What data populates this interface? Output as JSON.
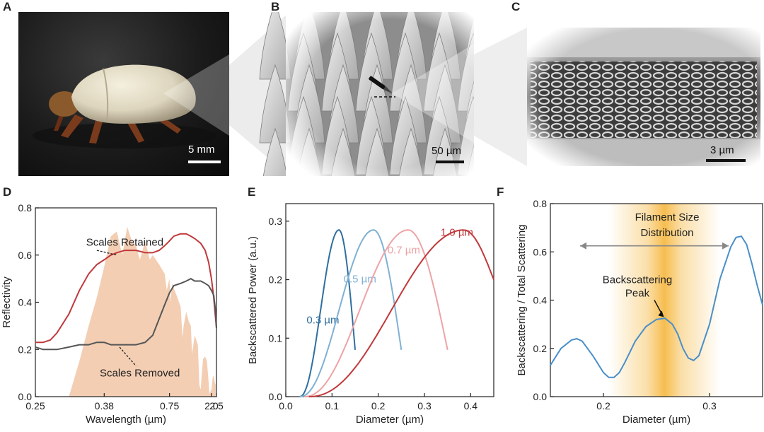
{
  "panels": {
    "A": {
      "letter": "A",
      "scale_bar": "5 mm"
    },
    "B": {
      "letter": "B",
      "scale_bar": "50 µm"
    },
    "C": {
      "letter": "C",
      "scale_bar": "3 µm"
    }
  },
  "chart_data": [
    {
      "panel": "D",
      "type": "line",
      "xlabel": "Wavelength (µm)",
      "ylabel": "Reflectivity",
      "xlim": [
        0.25,
        2.5
      ],
      "ylim": [
        0.0,
        0.8
      ],
      "x_scale": "reciprocal",
      "x_ticks": [
        0.25,
        0.38,
        0.75,
        2.0,
        2.5
      ],
      "x_tick_labels": [
        "0.25",
        "0.38",
        "0.75",
        "2.0",
        "2.5"
      ],
      "y_ticks": [
        0.0,
        0.2,
        0.4,
        0.6,
        0.8
      ],
      "y_tick_labels": [
        "0.0",
        "0.2",
        "0.4",
        "0.6",
        "0.8"
      ],
      "colors": {
        "retained": "#c0393b",
        "removed": "#555555",
        "solar": "#f1c6a6"
      },
      "series": [
        {
          "name": "Scales Retained",
          "x": [
            0.25,
            0.26,
            0.27,
            0.28,
            0.3,
            0.32,
            0.34,
            0.36,
            0.38,
            0.4,
            0.42,
            0.45,
            0.5,
            0.55,
            0.6,
            0.65,
            0.7,
            0.75,
            0.8,
            0.9,
            1.0,
            1.1,
            1.2,
            1.4,
            1.6,
            1.8,
            2.0,
            2.2,
            2.4,
            2.5
          ],
          "values": [
            0.23,
            0.23,
            0.24,
            0.27,
            0.35,
            0.45,
            0.52,
            0.56,
            0.58,
            0.6,
            0.61,
            0.62,
            0.62,
            0.61,
            0.61,
            0.62,
            0.64,
            0.66,
            0.68,
            0.69,
            0.69,
            0.68,
            0.67,
            0.65,
            0.62,
            0.57,
            0.5,
            0.42,
            0.33,
            0.29
          ]
        },
        {
          "name": "Scales Removed",
          "x": [
            0.25,
            0.26,
            0.27,
            0.28,
            0.3,
            0.32,
            0.34,
            0.36,
            0.38,
            0.4,
            0.45,
            0.5,
            0.55,
            0.6,
            0.65,
            0.7,
            0.75,
            0.8,
            0.9,
            1.0,
            1.1,
            1.2,
            1.4,
            1.6,
            1.8,
            2.0,
            2.2,
            2.4,
            2.5
          ],
          "values": [
            0.21,
            0.2,
            0.2,
            0.2,
            0.21,
            0.22,
            0.22,
            0.23,
            0.23,
            0.22,
            0.22,
            0.22,
            0.23,
            0.26,
            0.33,
            0.39,
            0.44,
            0.47,
            0.48,
            0.49,
            0.5,
            0.49,
            0.49,
            0.48,
            0.47,
            0.45,
            0.43,
            0.36,
            0.29
          ]
        }
      ],
      "solar_spectrum": {
        "x": [
          0.3,
          0.32,
          0.34,
          0.36,
          0.38,
          0.4,
          0.42,
          0.44,
          0.46,
          0.48,
          0.5,
          0.52,
          0.55,
          0.58,
          0.6,
          0.65,
          0.7,
          0.72,
          0.75,
          0.76,
          0.78,
          0.8,
          0.85,
          0.9,
          0.93,
          0.95,
          1.0,
          1.05,
          1.1,
          1.13,
          1.2,
          1.3,
          1.35,
          1.4,
          1.45,
          1.5,
          1.6,
          1.7,
          1.8,
          1.85,
          1.9,
          2.0,
          2.1,
          2.2,
          2.3,
          2.4
        ],
        "values": [
          0.0,
          0.15,
          0.3,
          0.42,
          0.55,
          0.68,
          0.7,
          0.6,
          0.72,
          0.66,
          0.64,
          0.58,
          0.66,
          0.58,
          0.6,
          0.56,
          0.52,
          0.45,
          0.5,
          0.4,
          0.48,
          0.46,
          0.42,
          0.38,
          0.25,
          0.3,
          0.36,
          0.32,
          0.3,
          0.18,
          0.26,
          0.22,
          0.05,
          0.03,
          0.1,
          0.16,
          0.17,
          0.15,
          0.06,
          0.01,
          0.02,
          0.03,
          0.08,
          0.09,
          0.06,
          0.05
        ]
      },
      "annotations": [
        {
          "text": "Scales Retained",
          "x": 0.45,
          "y": 0.64
        },
        {
          "text": "Scales Removed",
          "x": 0.52,
          "y": 0.1
        }
      ]
    },
    {
      "panel": "E",
      "type": "line",
      "xlabel": "Diameter (µm)",
      "ylabel": "Backscattered Power (a.u.)",
      "xlim": [
        0.0,
        0.45
      ],
      "ylim": [
        0.0,
        0.33
      ],
      "x_ticks": [
        0.0,
        0.1,
        0.2,
        0.3,
        0.4
      ],
      "x_tick_labels": [
        "0.0",
        "0.1",
        "0.2",
        "0.3",
        "0.4"
      ],
      "y_ticks": [
        0.0,
        0.1,
        0.2,
        0.3
      ],
      "y_tick_labels": [
        "0.0",
        "0.1",
        "0.2",
        "0.3"
      ],
      "series": [
        {
          "name": "0.3 µm",
          "color": "#2f6f9f",
          "peak_x": 0.115,
          "peak_y": 0.285,
          "x_start": 0.03,
          "x_end": 0.15,
          "end_y": 0.08,
          "label_x": 0.045,
          "label_y": 0.125
        },
        {
          "name": "0.5 µm",
          "color": "#7fb1d3",
          "peak_x": 0.19,
          "peak_y": 0.285,
          "x_start": 0.03,
          "x_end": 0.25,
          "end_y": 0.08,
          "label_x": 0.125,
          "label_y": 0.195
        },
        {
          "name": "0.7 µm",
          "color": "#eda3a6",
          "peak_x": 0.265,
          "peak_y": 0.285,
          "x_start": 0.04,
          "x_end": 0.35,
          "end_y": 0.08,
          "label_x": 0.22,
          "label_y": 0.245
        },
        {
          "name": "1.0 µm",
          "color": "#c0393b",
          "peak_x": 0.385,
          "peak_y": 0.285,
          "x_start": 0.05,
          "x_end": 0.45,
          "end_y": 0.2,
          "label_x": 0.335,
          "label_y": 0.275
        }
      ]
    },
    {
      "panel": "F",
      "type": "line",
      "xlabel": "Diameter (µm)",
      "ylabel": "Backscattering / Total Scattering",
      "xlim": [
        0.15,
        0.35
      ],
      "ylim": [
        0.0,
        0.8
      ],
      "x_ticks": [
        0.2,
        0.3
      ],
      "x_tick_labels": [
        "0.2",
        "0.3"
      ],
      "y_ticks": [
        0.0,
        0.2,
        0.4,
        0.6,
        0.8
      ],
      "y_tick_labels": [
        "0.0",
        "0.2",
        "0.4",
        "0.6",
        "0.8"
      ],
      "line_color": "#4a8fc9",
      "band": {
        "center": 0.258,
        "from": 0.205,
        "to": 0.31,
        "color": "#f5b63c"
      },
      "series": [
        {
          "name": "",
          "x": [
            0.15,
            0.16,
            0.17,
            0.175,
            0.18,
            0.19,
            0.2,
            0.205,
            0.21,
            0.215,
            0.22,
            0.23,
            0.24,
            0.25,
            0.258,
            0.265,
            0.27,
            0.275,
            0.28,
            0.285,
            0.29,
            0.3,
            0.31,
            0.32,
            0.325,
            0.33,
            0.335,
            0.34,
            0.345,
            0.35
          ],
          "values": [
            0.13,
            0.2,
            0.235,
            0.24,
            0.23,
            0.17,
            0.1,
            0.08,
            0.08,
            0.1,
            0.14,
            0.23,
            0.29,
            0.32,
            0.325,
            0.3,
            0.26,
            0.2,
            0.16,
            0.15,
            0.17,
            0.3,
            0.49,
            0.62,
            0.66,
            0.665,
            0.63,
            0.55,
            0.46,
            0.38
          ]
        }
      ],
      "annotations": [
        {
          "text": "Filament Size",
          "x": 0.26,
          "y": 0.73
        },
        {
          "text": "Distribution",
          "x": 0.26,
          "y": 0.665
        },
        {
          "text": "Backscattering",
          "x": 0.232,
          "y": 0.47
        },
        {
          "text": "Peak",
          "x": 0.232,
          "y": 0.415
        }
      ],
      "arrow": {
        "from": 0.178,
        "to": 0.318,
        "y": 0.625
      }
    }
  ]
}
